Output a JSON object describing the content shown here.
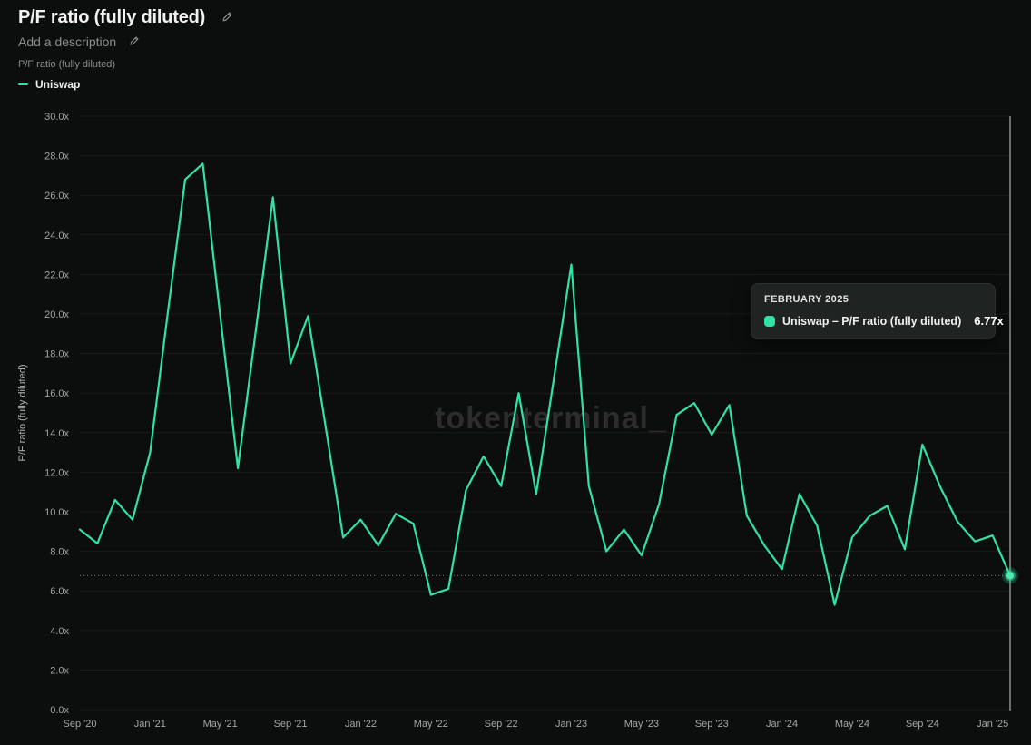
{
  "header": {
    "title": "P/F ratio (fully diluted)",
    "description": "Add a description"
  },
  "legend": {
    "metric_label": "P/F ratio (fully diluted)"
  },
  "tooltip": {
    "date_label": "FEBRUARY 2025",
    "series_label": "Uniswap – P/F ratio (fully diluted)",
    "value": "6.77x"
  },
  "colors": {
    "accent_green": "#2fe3a5",
    "dot_core": "#52e9b0",
    "grid": "#1a1b1a",
    "axis_text": "#a6a6a6",
    "watermark": "#2d2d2d",
    "crosshair": "#8f8f8f",
    "reference": "#9a9a9a"
  },
  "chart_data": {
    "type": "line",
    "title": "P/F ratio (fully diluted)",
    "ylabel": "P/F ratio (fully diluted)",
    "watermark": "tokenterminal_",
    "grid": "horizontal",
    "legend_position": "top-left",
    "ylim": [
      0,
      30
    ],
    "y_ticks": [
      0,
      2,
      4,
      6,
      8,
      10,
      12,
      14,
      16,
      18,
      20,
      22,
      24,
      26,
      28,
      30
    ],
    "y_tick_suffix": "x",
    "x": [
      "2020-09",
      "2020-10",
      "2020-11",
      "2020-12",
      "2021-01",
      "2021-02",
      "2021-03",
      "2021-04",
      "2021-05",
      "2021-06",
      "2021-07",
      "2021-08",
      "2021-09",
      "2021-10",
      "2021-11",
      "2021-12",
      "2022-01",
      "2022-02",
      "2022-03",
      "2022-04",
      "2022-05",
      "2022-06",
      "2022-07",
      "2022-08",
      "2022-09",
      "2022-10",
      "2022-11",
      "2022-12",
      "2023-01",
      "2023-02",
      "2023-03",
      "2023-04",
      "2023-05",
      "2023-06",
      "2023-07",
      "2023-08",
      "2023-09",
      "2023-10",
      "2023-11",
      "2023-12",
      "2024-01",
      "2024-02",
      "2024-03",
      "2024-04",
      "2024-05",
      "2024-06",
      "2024-07",
      "2024-08",
      "2024-09",
      "2024-10",
      "2024-11",
      "2024-12",
      "2025-01",
      "2025-02"
    ],
    "x_tick_labels": [
      "Sep '20",
      "Jan '21",
      "May '21",
      "Sep '21",
      "Jan '22",
      "May '22",
      "Sep '22",
      "Jan '23",
      "May '23",
      "Sep '23",
      "Jan '24",
      "May '24",
      "Sep '24",
      "Jan '25"
    ],
    "x_tick_indices": [
      0,
      4,
      8,
      12,
      16,
      20,
      24,
      28,
      32,
      36,
      40,
      44,
      48,
      52
    ],
    "series": [
      {
        "name": "Uniswap",
        "color": "#2fe3a5",
        "values": [
          9.1,
          8.4,
          10.6,
          9.6,
          13.0,
          20.0,
          26.8,
          27.6,
          19.9,
          12.2,
          19.0,
          25.9,
          17.5,
          19.9,
          14.3,
          8.7,
          9.6,
          8.3,
          9.9,
          9.4,
          5.8,
          6.1,
          11.1,
          12.8,
          11.3,
          16.0,
          10.9,
          16.7,
          22.5,
          11.3,
          8.0,
          9.1,
          7.8,
          10.4,
          14.9,
          15.5,
          13.9,
          15.4,
          9.8,
          8.3,
          7.1,
          10.9,
          9.3,
          5.3,
          8.7,
          9.8,
          10.3,
          8.1,
          13.4,
          11.3,
          9.5,
          8.5,
          8.8,
          6.77
        ]
      }
    ],
    "reference_line": {
      "value": 6.77,
      "style": "dotted"
    },
    "crosshair_index": 53,
    "end_marker": {
      "index": 53,
      "value": 6.77
    }
  }
}
